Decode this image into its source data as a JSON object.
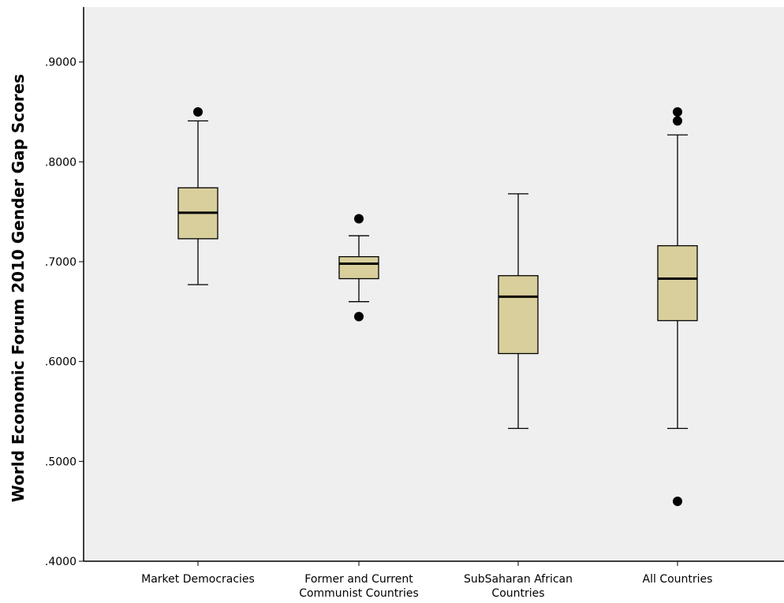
{
  "chart_data": {
    "type": "boxplot",
    "ylabel": "World Economic Forum 2010 Gender Gap Scores",
    "xlabel": "",
    "ylim": [
      0.4,
      0.955
    ],
    "yticks": [
      0.4,
      0.5,
      0.6,
      0.7,
      0.8,
      0.9
    ],
    "ytick_labels": [
      ".4000",
      ".5000",
      ".6000",
      ".7000",
      ".8000",
      ".9000"
    ],
    "grid": false,
    "colors": {
      "plot_background": "#efefef",
      "box_fill": "#d9cf9c",
      "stroke": "#000000"
    },
    "categories": [
      {
        "label_lines": [
          "Market Democracies"
        ],
        "whisker_low": 0.677,
        "q1": 0.723,
        "median": 0.749,
        "q3": 0.774,
        "whisker_high": 0.841,
        "outliers": [
          0.85
        ]
      },
      {
        "label_lines": [
          "Former and Current",
          "Communist Countries"
        ],
        "whisker_low": 0.66,
        "q1": 0.683,
        "median": 0.698,
        "q3": 0.705,
        "whisker_high": 0.726,
        "outliers": [
          0.743,
          0.645
        ]
      },
      {
        "label_lines": [
          "SubSaharan African",
          "Countries"
        ],
        "whisker_low": 0.533,
        "q1": 0.608,
        "median": 0.665,
        "q3": 0.686,
        "whisker_high": 0.768,
        "outliers": []
      },
      {
        "label_lines": [
          "All Countries"
        ],
        "whisker_low": 0.533,
        "q1": 0.641,
        "median": 0.683,
        "q3": 0.716,
        "whisker_high": 0.827,
        "outliers": [
          0.85,
          0.841,
          0.46
        ]
      }
    ]
  }
}
